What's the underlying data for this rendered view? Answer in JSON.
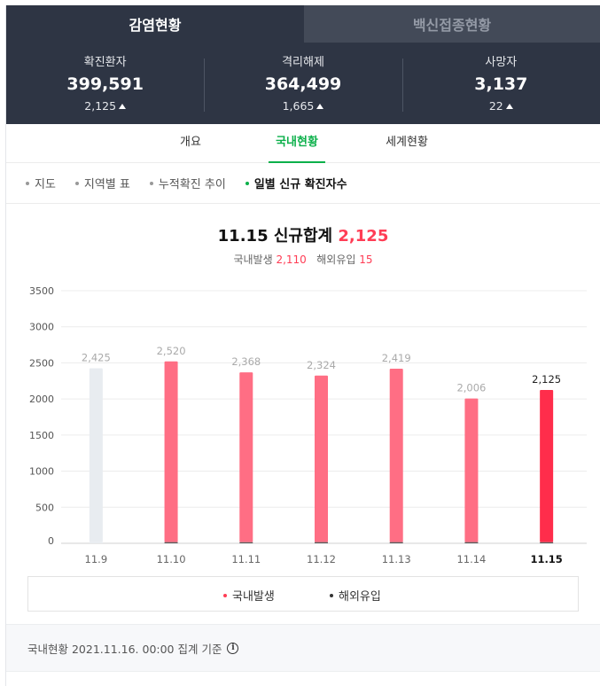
{
  "top_tabs": [
    {
      "label": "감염현황",
      "active": true
    },
    {
      "label": "백신접종현황",
      "active": false
    }
  ],
  "stats": [
    {
      "label": "확진환자",
      "value": "399,591",
      "change": "2,125"
    },
    {
      "label": "격리해제",
      "value": "364,499",
      "change": "1,665"
    },
    {
      "label": "사망자",
      "value": "3,137",
      "change": "22"
    }
  ],
  "sub_tabs": [
    {
      "label": "개요",
      "active": false
    },
    {
      "label": "국내현황",
      "active": true
    },
    {
      "label": "세계현황",
      "active": false
    }
  ],
  "chips": [
    {
      "label": "지도",
      "active": false
    },
    {
      "label": "지역별 표",
      "active": false
    },
    {
      "label": "누적확진 추이",
      "active": false
    },
    {
      "label": "일별 신규 확진자수",
      "active": true
    }
  ],
  "summary": {
    "date": "11.15",
    "title_label": "신규합계",
    "total": "2,125",
    "domestic_label": "국내발생",
    "domestic_value": "2,110",
    "overseas_label": "해외유입",
    "overseas_value": "15"
  },
  "chart_data": {
    "type": "bar",
    "categories": [
      "11.9",
      "11.10",
      "11.11",
      "11.12",
      "11.13",
      "11.14",
      "11.15"
    ],
    "series": [
      {
        "name": "국내발생",
        "values": [
          2410,
          2504,
          2353,
          2308,
          2403,
          1990,
          2110
        ]
      },
      {
        "name": "해외유입",
        "values": [
          15,
          16,
          15,
          16,
          16,
          16,
          15
        ]
      }
    ],
    "totals": [
      2425,
      2520,
      2368,
      2324,
      2419,
      2006,
      2125
    ],
    "total_labels": [
      "2,425",
      "2,520",
      "2,368",
      "2,324",
      "2,419",
      "2,006",
      "2,125"
    ],
    "y_ticks": [
      0,
      500,
      1000,
      1500,
      2000,
      2500,
      3000,
      3500
    ],
    "ylim": [
      0,
      3500
    ],
    "highlight_index": 6,
    "muted_index": 0,
    "colors": {
      "domestic": "#ff6e84",
      "domestic_highlight": "#ff2d4b",
      "muted": "#e8ecf0",
      "overseas": "#5a5a5a"
    },
    "grid": true,
    "legend_position": "bottom"
  },
  "legend": [
    {
      "label": "국내발생",
      "color": "#ff3d55"
    },
    {
      "label": "해외유입",
      "color": "#333333"
    }
  ],
  "footer": {
    "text": "국내현황 2021.11.16. 00:00 집계 기준",
    "icon": "info-icon"
  }
}
